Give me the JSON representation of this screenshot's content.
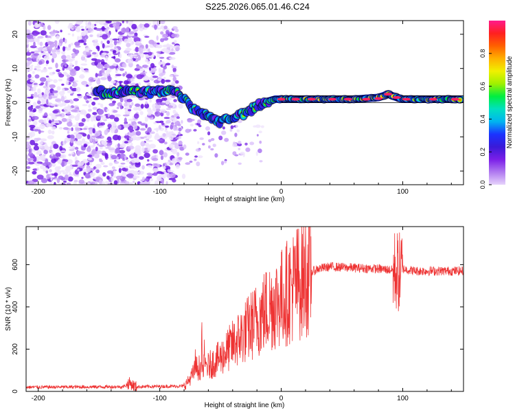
{
  "title": "S225.2026.065.01.46.C24",
  "colors": {
    "snr_line": "#ee3333",
    "axis": "#000000",
    "colormap": [
      "#ffffff",
      "#e6d3fb",
      "#b07af0",
      "#7b1fe8",
      "#3a1ad8",
      "#1a33ff",
      "#00b5f0",
      "#00e0c0",
      "#00ee40",
      "#a0f000",
      "#f0f000",
      "#ffb000",
      "#ff6000",
      "#ff2020",
      "#ff1a8c"
    ]
  },
  "chart_data": [
    {
      "type": "heatmap",
      "name": "spectrogram",
      "xlabel": "Height of straight line (km)",
      "ylabel": "Frequency (Hz)",
      "xlim": [
        -210,
        150
      ],
      "ylim": [
        -24,
        24
      ],
      "xticks": [
        -200,
        -100,
        0,
        100
      ],
      "yticks": [
        -20,
        -10,
        0,
        10,
        20
      ],
      "colorbar": {
        "label": "Normalized spectral amplitude",
        "range": [
          0,
          1
        ],
        "ticks": [
          "0.0",
          "0.2",
          "0.4",
          "0.6",
          "0.8"
        ]
      },
      "ridge": {
        "x": [
          -150,
          -135,
          -125,
          -110,
          -100,
          -92,
          -85,
          -80,
          -75,
          -70,
          -65,
          -60,
          -55,
          -50,
          -45,
          -40,
          -35,
          -30,
          -25,
          -20,
          -15,
          -10,
          -5,
          0,
          10,
          20,
          40,
          60,
          80,
          88,
          95,
          100,
          110,
          120,
          130,
          150
        ],
        "y": [
          3,
          3,
          3.5,
          3,
          3,
          3.5,
          3,
          1,
          -1,
          -2,
          -3,
          -4,
          -5,
          -5.5,
          -5,
          -4,
          -3.5,
          -3,
          -2,
          -1,
          0,
          0.5,
          1,
          1,
          1,
          1,
          1,
          1,
          1.5,
          2.5,
          1.5,
          1,
          1,
          1,
          1,
          1
        ]
      }
    },
    {
      "type": "line",
      "name": "snr",
      "xlabel": "Height of straight line (km)",
      "ylabel": "SNR (10 * v/v)",
      "xlim": [
        -210,
        150
      ],
      "ylim": [
        0,
        780
      ],
      "xticks": [
        -200,
        -100,
        0,
        100
      ],
      "yticks": [
        0,
        200,
        400,
        600
      ],
      "envelope": {
        "x": [
          -210,
          -130,
          -125,
          -120,
          -80,
          -75,
          -70,
          -60,
          -50,
          -40,
          -30,
          -20,
          -10,
          0,
          10,
          20,
          30,
          40,
          60,
          80,
          90,
          95,
          97,
          100,
          110,
          150
        ],
        "y": [
          20,
          22,
          40,
          22,
          25,
          60,
          110,
          120,
          160,
          220,
          280,
          340,
          400,
          440,
          500,
          550,
          580,
          590,
          585,
          580,
          575,
          570,
          560,
          580,
          570,
          570
        ]
      }
    }
  ]
}
